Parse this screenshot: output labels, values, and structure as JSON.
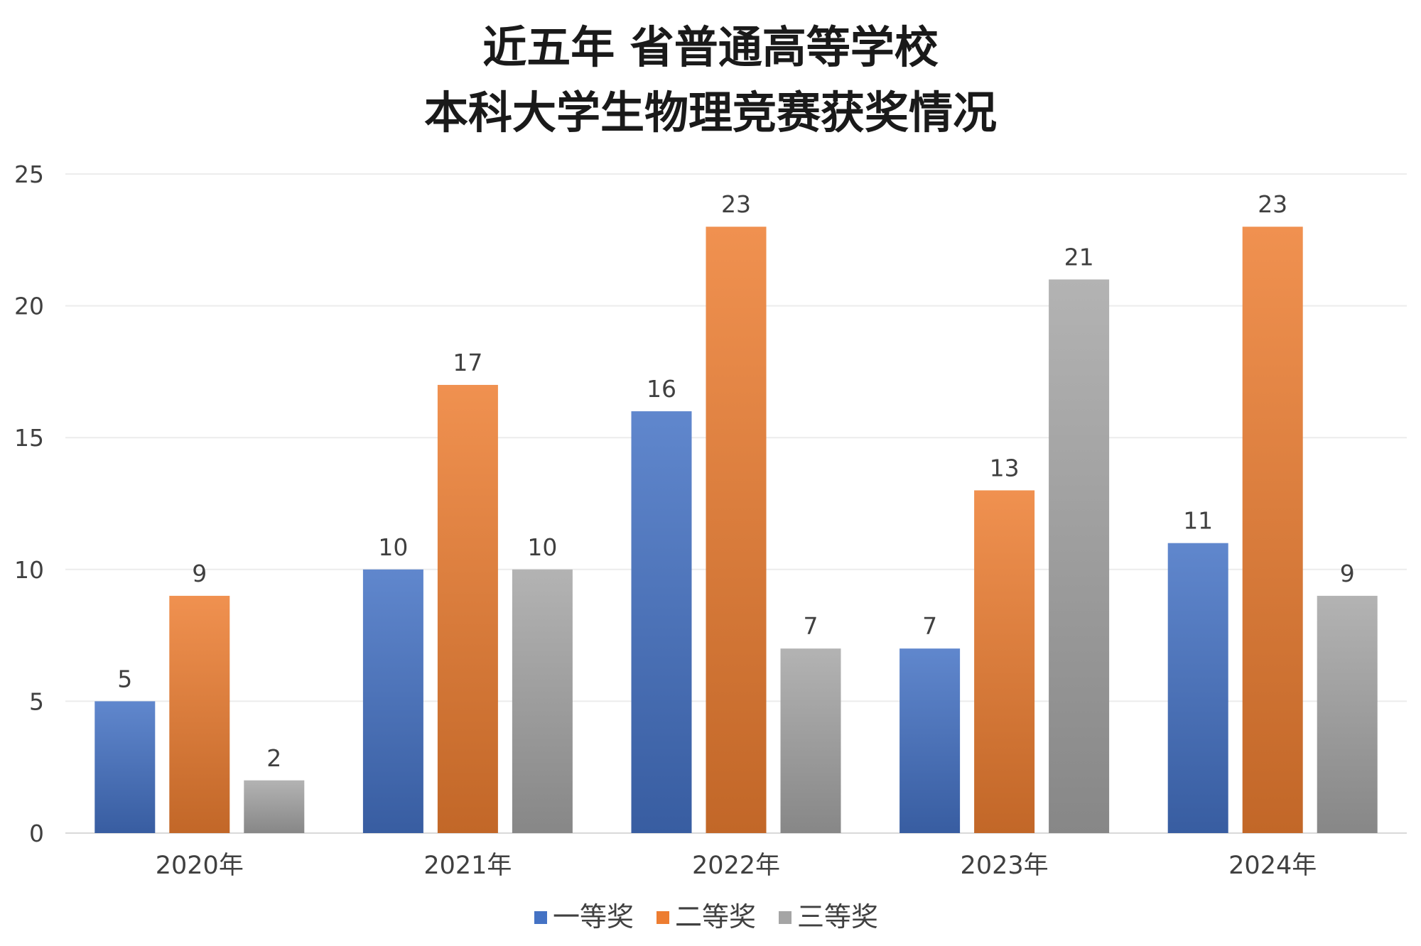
{
  "chart_data": {
    "type": "bar",
    "title_lines": [
      "近五年  省普通高等学校",
      "本科大学生物理竞赛获奖情况"
    ],
    "categories": [
      "2020年",
      "2021年",
      "2022年",
      "2023年",
      "2024年"
    ],
    "series": [
      {
        "name": "一等奖",
        "values": [
          5,
          10,
          16,
          7,
          11
        ],
        "color": "#4472C4"
      },
      {
        "name": "二等奖",
        "values": [
          9,
          17,
          23,
          13,
          23
        ],
        "color": "#ED7D31"
      },
      {
        "name": "三等奖",
        "values": [
          2,
          10,
          7,
          21,
          9
        ],
        "color": "#A5A5A5"
      }
    ],
    "ylim": [
      0,
      25
    ],
    "yticks": [
      0,
      5,
      10,
      15,
      20,
      25
    ],
    "grid": true,
    "data_labels": true,
    "legend_position": "bottom-center"
  }
}
